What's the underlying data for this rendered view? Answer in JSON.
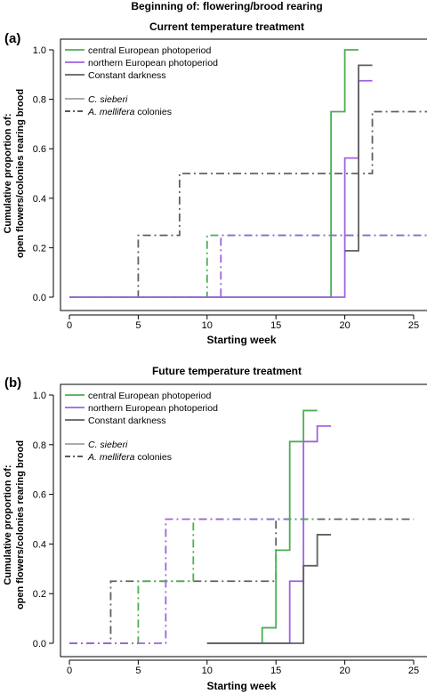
{
  "figure": {
    "title": "Beginning of: flowering/brood rearing",
    "ylabel_line1": "Cumulative proportion of:",
    "ylabel_line2": "open flowers/colonies rearing brood",
    "xlabel": "Starting week"
  },
  "colors": {
    "central": "#4caf50",
    "northern": "#9d63e0",
    "darkness": "#606060",
    "legend_plant": "#a0a0a0",
    "legend_bee": "#444444"
  },
  "legend": {
    "central": "central European photoperiod",
    "northern": "northern European photoperiod",
    "darkness": "Constant darkness",
    "plant": "C. sieberi",
    "bee": "A. mellifera",
    "bee_suffix": " colonies"
  },
  "chart_data": [
    {
      "type": "line",
      "panel_label": "(a)",
      "title": "Current temperature treatment",
      "xlabel": "Starting week",
      "ylabel": "Cumulative proportion of: open flowers/colonies rearing brood",
      "xlim": [
        0,
        26
      ],
      "ylim": [
        0,
        1
      ],
      "xticks": [
        0,
        5,
        10,
        15,
        20,
        25
      ],
      "yticks": [
        0.0,
        0.2,
        0.4,
        0.6,
        0.8,
        1.0
      ],
      "ytick_labels": [
        "0.0",
        "0.2",
        "0.4",
        "0.6",
        "0.8",
        "1.0"
      ],
      "legend_position": "top-left",
      "series": [
        {
          "key": "bee_darkness",
          "color_key": "darkness",
          "style": "dashdot",
          "x": [
            0,
            5,
            8,
            22,
            26
          ],
          "y": [
            0,
            0.25,
            0.5,
            0.75,
            0.75
          ]
        },
        {
          "key": "bee_central",
          "color_key": "central",
          "style": "dashdot",
          "x": [
            0,
            10,
            26
          ],
          "y": [
            0,
            0.25,
            0.25
          ]
        },
        {
          "key": "bee_northern",
          "color_key": "northern",
          "style": "dashdot",
          "x": [
            0,
            11,
            26
          ],
          "y": [
            0,
            0.25,
            0.25
          ]
        },
        {
          "key": "plant_central",
          "color_key": "central",
          "style": "solid",
          "x": [
            0,
            19,
            20,
            21
          ],
          "y": [
            0,
            0.75,
            1.0,
            1.0
          ]
        },
        {
          "key": "plant_northern",
          "color_key": "northern",
          "style": "solid",
          "x": [
            0,
            20,
            21,
            22
          ],
          "y": [
            0,
            0.5625,
            0.875,
            0.875
          ]
        },
        {
          "key": "plant_darkness",
          "color_key": "darkness",
          "style": "solid",
          "x": [
            20,
            21,
            22
          ],
          "y": [
            0.1875,
            0.9375,
            0.9375
          ]
        }
      ]
    },
    {
      "type": "line",
      "panel_label": "(b)",
      "title": "Future temperature treatment",
      "xlabel": "Starting week",
      "ylabel": "Cumulative proportion of: open flowers/colonies rearing brood",
      "xlim": [
        0,
        26
      ],
      "ylim": [
        0,
        1
      ],
      "xticks": [
        0,
        5,
        10,
        15,
        20,
        25
      ],
      "yticks": [
        0.0,
        0.2,
        0.4,
        0.6,
        0.8,
        1.0
      ],
      "ytick_labels": [
        "0.0",
        "0.2",
        "0.4",
        "0.6",
        "0.8",
        "1.0"
      ],
      "legend_position": "top-left",
      "series": [
        {
          "key": "bee_darkness",
          "color_key": "darkness",
          "style": "dashdot",
          "x": [
            0,
            3,
            15,
            25
          ],
          "y": [
            0,
            0.25,
            0.5,
            0.5
          ]
        },
        {
          "key": "bee_central",
          "color_key": "central",
          "style": "dashdot",
          "x": [
            0,
            5,
            9,
            18
          ],
          "y": [
            0,
            0.25,
            0.5,
            0.5
          ]
        },
        {
          "key": "bee_northern",
          "color_key": "northern",
          "style": "dashdot",
          "x": [
            0,
            7,
            16
          ],
          "y": [
            0,
            0.5,
            0.5
          ]
        },
        {
          "key": "plant_central",
          "color_key": "central",
          "style": "solid",
          "x": [
            10,
            14,
            15,
            16,
            17,
            18
          ],
          "y": [
            0,
            0.0625,
            0.375,
            0.8125,
            0.9375,
            0.9375
          ]
        },
        {
          "key": "plant_northern",
          "color_key": "northern",
          "style": "solid",
          "x": [
            10,
            16,
            17,
            18,
            19
          ],
          "y": [
            0,
            0.25,
            0.8125,
            0.875,
            0.875
          ]
        },
        {
          "key": "plant_darkness",
          "color_key": "darkness",
          "style": "solid",
          "x": [
            10,
            17,
            18,
            19
          ],
          "y": [
            0,
            0.3125,
            0.4375,
            0.4375
          ]
        }
      ]
    }
  ]
}
